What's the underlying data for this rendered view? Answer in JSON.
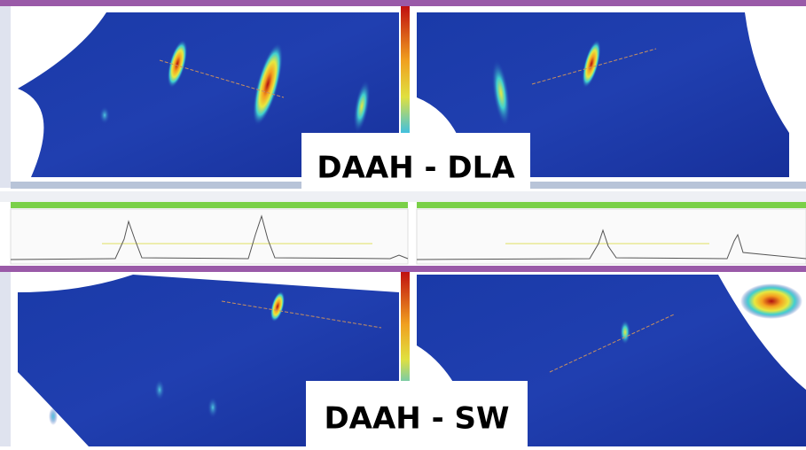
{
  "labels": {
    "top": "DAAH - DLA",
    "bottom": "DAAH - SW"
  }
}
